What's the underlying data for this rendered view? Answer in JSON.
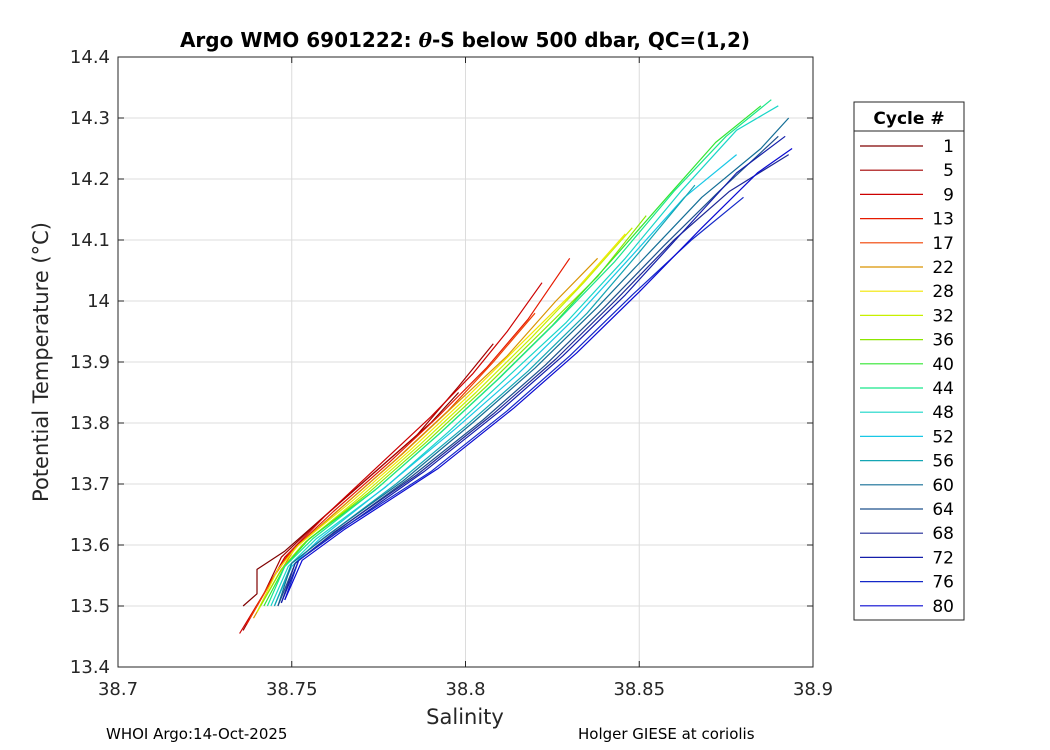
{
  "chart_data": {
    "type": "line",
    "title": "Argo WMO 6901222: θ-S below 500 dbar,  QC=(1,2)",
    "xlabel": "Salinity",
    "ylabel": "Potential Temperature (°C)",
    "xlim": [
      38.7,
      38.9
    ],
    "ylim": [
      13.4,
      14.4
    ],
    "xticks": [
      "38.7",
      "38.75",
      "38.8",
      "38.85",
      "38.9"
    ],
    "yticks": [
      "13.4",
      "13.5",
      "13.6",
      "13.7",
      "13.8",
      "13.9",
      "14",
      "14.1",
      "14.2",
      "14.3",
      "14.4"
    ],
    "grid": true,
    "legend": {
      "title": "Cycle #",
      "placement": "right-outside"
    },
    "series": [
      {
        "name": "1",
        "color": "#800000",
        "points": [
          [
            38.736,
            13.5
          ],
          [
            38.74,
            13.52
          ],
          [
            38.74,
            13.56
          ],
          [
            38.748,
            13.59
          ],
          [
            38.76,
            13.65
          ],
          [
            38.776,
            13.73
          ],
          [
            38.79,
            13.8
          ],
          [
            38.798,
            13.85
          ]
        ]
      },
      {
        "name": "5",
        "color": "#a40000",
        "points": [
          [
            38.736,
            13.46
          ],
          [
            38.742,
            13.52
          ],
          [
            38.747,
            13.58
          ],
          [
            38.758,
            13.64
          ],
          [
            38.772,
            13.71
          ],
          [
            38.786,
            13.78
          ],
          [
            38.798,
            13.86
          ],
          [
            38.808,
            13.93
          ]
        ]
      },
      {
        "name": "9",
        "color": "#cc0000",
        "points": [
          [
            38.735,
            13.455
          ],
          [
            38.743,
            13.53
          ],
          [
            38.748,
            13.58
          ],
          [
            38.76,
            13.65
          ],
          [
            38.775,
            13.73
          ],
          [
            38.79,
            13.81
          ],
          [
            38.802,
            13.88
          ],
          [
            38.812,
            13.95
          ],
          [
            38.822,
            14.03
          ]
        ]
      },
      {
        "name": "13",
        "color": "#e61a00",
        "points": [
          [
            38.737,
            13.47
          ],
          [
            38.744,
            13.54
          ],
          [
            38.749,
            13.585
          ],
          [
            38.762,
            13.655
          ],
          [
            38.778,
            13.735
          ],
          [
            38.792,
            13.81
          ],
          [
            38.806,
            13.89
          ],
          [
            38.818,
            13.97
          ],
          [
            38.83,
            14.07
          ]
        ]
      },
      {
        "name": "17",
        "color": "#f04000",
        "points": [
          [
            38.738,
            13.48
          ],
          [
            38.745,
            13.55
          ],
          [
            38.75,
            13.59
          ],
          [
            38.764,
            13.66
          ],
          [
            38.78,
            13.74
          ],
          [
            38.795,
            13.82
          ],
          [
            38.808,
            13.9
          ],
          [
            38.82,
            13.98
          ]
        ]
      },
      {
        "name": "22",
        "color": "#d99400",
        "points": [
          [
            38.739,
            13.48
          ],
          [
            38.746,
            13.55
          ],
          [
            38.751,
            13.595
          ],
          [
            38.766,
            13.67
          ],
          [
            38.782,
            13.75
          ],
          [
            38.797,
            13.83
          ],
          [
            38.812,
            13.91
          ],
          [
            38.826,
            14.0
          ],
          [
            38.838,
            14.07
          ]
        ]
      },
      {
        "name": "28",
        "color": "#f2e600",
        "points": [
          [
            38.74,
            13.49
          ],
          [
            38.746,
            13.56
          ],
          [
            38.752,
            13.6
          ],
          [
            38.768,
            13.675
          ],
          [
            38.784,
            13.755
          ],
          [
            38.8,
            13.84
          ],
          [
            38.816,
            13.93
          ],
          [
            38.832,
            14.02
          ],
          [
            38.846,
            14.11
          ]
        ]
      },
      {
        "name": "32",
        "color": "#c8f000",
        "points": [
          [
            38.74,
            13.49
          ],
          [
            38.747,
            13.56
          ],
          [
            38.753,
            13.6
          ],
          [
            38.77,
            13.68
          ],
          [
            38.787,
            13.765
          ],
          [
            38.803,
            13.85
          ],
          [
            38.819,
            13.94
          ],
          [
            38.834,
            14.03
          ],
          [
            38.848,
            14.12
          ]
        ]
      },
      {
        "name": "36",
        "color": "#8ce600",
        "points": [
          [
            38.741,
            13.5
          ],
          [
            38.747,
            13.56
          ],
          [
            38.754,
            13.605
          ],
          [
            38.772,
            13.685
          ],
          [
            38.789,
            13.77
          ],
          [
            38.806,
            13.86
          ],
          [
            38.822,
            13.95
          ],
          [
            38.838,
            14.04
          ],
          [
            38.852,
            14.14
          ]
        ]
      },
      {
        "name": "40",
        "color": "#32e632",
        "points": [
          [
            38.742,
            13.5
          ],
          [
            38.748,
            13.565
          ],
          [
            38.755,
            13.61
          ],
          [
            38.774,
            13.69
          ],
          [
            38.792,
            13.78
          ],
          [
            38.809,
            13.87
          ],
          [
            38.825,
            13.96
          ],
          [
            38.841,
            14.06
          ],
          [
            38.858,
            14.17
          ],
          [
            38.872,
            14.26
          ],
          [
            38.885,
            14.32
          ]
        ]
      },
      {
        "name": "44",
        "color": "#19e68c",
        "points": [
          [
            38.743,
            13.5
          ],
          [
            38.748,
            13.565
          ],
          [
            38.756,
            13.61
          ],
          [
            38.775,
            13.695
          ],
          [
            38.793,
            13.785
          ],
          [
            38.81,
            13.875
          ],
          [
            38.826,
            13.965
          ],
          [
            38.843,
            14.065
          ],
          [
            38.86,
            14.18
          ],
          [
            38.875,
            14.27
          ],
          [
            38.888,
            14.33
          ]
        ]
      },
      {
        "name": "48",
        "color": "#19d6c8",
        "points": [
          [
            38.744,
            13.5
          ],
          [
            38.749,
            13.565
          ],
          [
            38.757,
            13.61
          ],
          [
            38.777,
            13.695
          ],
          [
            38.795,
            13.785
          ],
          [
            38.812,
            13.875
          ],
          [
            38.829,
            13.965
          ],
          [
            38.846,
            14.07
          ],
          [
            38.862,
            14.18
          ],
          [
            38.878,
            14.28
          ],
          [
            38.89,
            14.32
          ]
        ]
      },
      {
        "name": "52",
        "color": "#19c8e6",
        "points": [
          [
            38.745,
            13.5
          ],
          [
            38.75,
            13.565
          ],
          [
            38.758,
            13.61
          ],
          [
            38.778,
            13.7
          ],
          [
            38.797,
            13.79
          ],
          [
            38.815,
            13.88
          ],
          [
            38.832,
            13.975
          ],
          [
            38.848,
            14.075
          ],
          [
            38.863,
            14.17
          ],
          [
            38.878,
            14.24
          ]
        ]
      },
      {
        "name": "56",
        "color": "#14a6b4",
        "points": [
          [
            38.745,
            13.5
          ],
          [
            38.75,
            13.57
          ],
          [
            38.759,
            13.61
          ],
          [
            38.78,
            13.7
          ],
          [
            38.8,
            13.795
          ],
          [
            38.818,
            13.885
          ],
          [
            38.835,
            13.98
          ],
          [
            38.85,
            14.08
          ],
          [
            38.866,
            14.19
          ]
        ]
      },
      {
        "name": "60",
        "color": "#146e96",
        "points": [
          [
            38.746,
            13.5
          ],
          [
            38.75,
            13.57
          ],
          [
            38.76,
            13.615
          ],
          [
            38.782,
            13.705
          ],
          [
            38.802,
            13.8
          ],
          [
            38.82,
            13.89
          ],
          [
            38.838,
            13.99
          ],
          [
            38.853,
            14.08
          ],
          [
            38.868,
            14.17
          ],
          [
            38.885,
            14.25
          ],
          [
            38.893,
            14.3
          ]
        ]
      },
      {
        "name": "64",
        "color": "#1e508c",
        "points": [
          [
            38.746,
            13.5
          ],
          [
            38.751,
            13.57
          ],
          [
            38.761,
            13.615
          ],
          [
            38.784,
            13.71
          ],
          [
            38.805,
            13.805
          ],
          [
            38.823,
            13.895
          ],
          [
            38.84,
            13.99
          ],
          [
            38.857,
            14.09
          ],
          [
            38.873,
            14.18
          ],
          [
            38.89,
            14.27
          ]
        ]
      },
      {
        "name": "68",
        "color": "#1e2896",
        "points": [
          [
            38.747,
            13.505
          ],
          [
            38.751,
            13.57
          ],
          [
            38.762,
            13.62
          ],
          [
            38.786,
            13.715
          ],
          [
            38.808,
            13.815
          ],
          [
            38.826,
            13.905
          ],
          [
            38.843,
            14.0
          ],
          [
            38.86,
            14.1
          ],
          [
            38.876,
            14.18
          ],
          [
            38.893,
            14.24
          ]
        ]
      },
      {
        "name": "72",
        "color": "#141eaa",
        "points": [
          [
            38.747,
            13.505
          ],
          [
            38.752,
            13.575
          ],
          [
            38.763,
            13.62
          ],
          [
            38.788,
            13.72
          ],
          [
            38.81,
            13.82
          ],
          [
            38.828,
            13.91
          ],
          [
            38.846,
            14.01
          ],
          [
            38.862,
            14.11
          ],
          [
            38.878,
            14.21
          ],
          [
            38.892,
            14.27
          ]
        ]
      },
      {
        "name": "76",
        "color": "#1428c8",
        "points": [
          [
            38.748,
            13.51
          ],
          [
            38.752,
            13.575
          ],
          [
            38.764,
            13.625
          ],
          [
            38.79,
            13.72
          ],
          [
            38.812,
            13.82
          ],
          [
            38.83,
            13.91
          ],
          [
            38.848,
            14.01
          ],
          [
            38.865,
            14.1
          ],
          [
            38.88,
            14.17
          ]
        ]
      },
      {
        "name": "80",
        "color": "#0a0ad2",
        "points": [
          [
            38.748,
            13.51
          ],
          [
            38.753,
            13.575
          ],
          [
            38.765,
            13.625
          ],
          [
            38.792,
            13.725
          ],
          [
            38.814,
            13.825
          ],
          [
            38.832,
            13.915
          ],
          [
            38.85,
            14.015
          ],
          [
            38.868,
            14.12
          ],
          [
            38.884,
            14.21
          ],
          [
            38.894,
            14.25
          ]
        ]
      }
    ]
  },
  "footer": {
    "left": "WHOI Argo:14-Oct-2025",
    "right": "Holger GIESE at coriolis"
  }
}
